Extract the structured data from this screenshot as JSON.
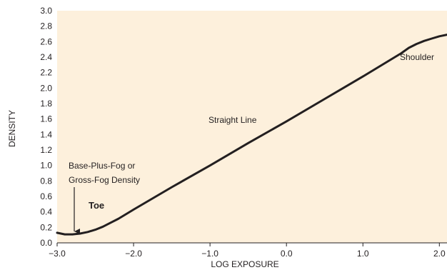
{
  "chart_data": {
    "type": "line",
    "xlabel": "LOG EXPOSURE",
    "ylabel": "DENSITY",
    "xlim": [
      -3.0,
      2.1
    ],
    "ylim": [
      0.0,
      3.0
    ],
    "x_ticks": [
      "−3.0",
      "−2.0",
      "−1.0",
      "0.0",
      "1.0",
      "2.0"
    ],
    "x_tick_values": [
      -3.0,
      -2.0,
      -1.0,
      0.0,
      1.0,
      2.0
    ],
    "y_ticks": [
      "0.0",
      "0.2",
      "0.4",
      "0.6",
      "0.8",
      "1.0",
      "1.2",
      "1.4",
      "1.6",
      "1.8",
      "2.0",
      "2.2",
      "2.4",
      "2.6",
      "2.8",
      "3.0"
    ],
    "y_tick_values": [
      0.0,
      0.2,
      0.4,
      0.6,
      0.8,
      1.0,
      1.2,
      1.4,
      1.6,
      1.8,
      2.0,
      2.2,
      2.4,
      2.6,
      2.8,
      3.0
    ],
    "grid": false,
    "background_color": "#fdf0dc",
    "line_color": "#231f20",
    "series": [
      {
        "x": [
          -3.0,
          -2.9,
          -2.8,
          -2.7,
          -2.6,
          -2.5,
          -2.4,
          -2.3,
          -2.2,
          -2.1,
          -2.0,
          -1.5,
          -1.0,
          -0.5,
          0.0,
          0.5,
          1.0,
          1.5,
          1.6,
          1.7,
          1.8,
          1.9,
          2.0,
          2.1
        ],
        "y": [
          0.13,
          0.11,
          0.11,
          0.12,
          0.14,
          0.17,
          0.21,
          0.26,
          0.31,
          0.37,
          0.43,
          0.72,
          1.0,
          1.29,
          1.57,
          1.86,
          2.15,
          2.45,
          2.52,
          2.57,
          2.61,
          2.64,
          2.67,
          2.69
        ]
      }
    ],
    "annotations": {
      "base_fog": [
        "Base-Plus-Fog or",
        "Gross-Fog Density"
      ],
      "toe": "Toe",
      "straight": "Straight Line",
      "shoulder": "Shoulder"
    }
  }
}
